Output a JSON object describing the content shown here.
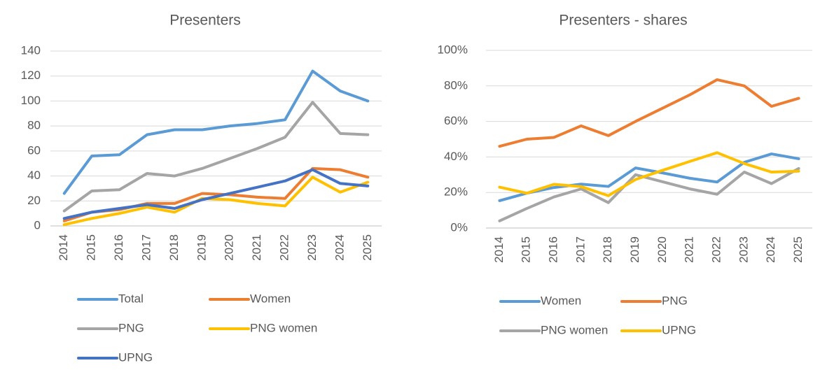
{
  "chart_data": [
    {
      "type": "line",
      "title": "Presenters",
      "categories": [
        "2014",
        "2015",
        "2016",
        "2017",
        "2018",
        "2019",
        "2020",
        "2021",
        "2022",
        "2023",
        "2024",
        "2025"
      ],
      "series": [
        {
          "name": "Total",
          "color": "#5b9bd5",
          "values": [
            26,
            56,
            57,
            73,
            77,
            77,
            80,
            82,
            85,
            124,
            108,
            100
          ]
        },
        {
          "name": "Women",
          "color": "#ed7d31",
          "values": [
            4,
            11,
            13,
            18,
            18,
            26,
            25,
            23,
            22,
            46,
            45,
            39
          ]
        },
        {
          "name": "PNG",
          "color": "#a5a5a5",
          "values": [
            12,
            28,
            29,
            42,
            40,
            46,
            54,
            62,
            71,
            99,
            74,
            73
          ]
        },
        {
          "name": "PNG women",
          "color": "#ffc000",
          "values": [
            1,
            6,
            10,
            15,
            11,
            22,
            21,
            18,
            16,
            39,
            27,
            35
          ]
        },
        {
          "name": "UPNG",
          "color": "#4472c4",
          "values": [
            6,
            11,
            14,
            17,
            14,
            21,
            26,
            31,
            36,
            45,
            34,
            32
          ]
        }
      ],
      "ylim": [
        0,
        140
      ],
      "yticks": [
        0,
        20,
        40,
        60,
        80,
        100,
        120,
        140
      ],
      "grid": true
    },
    {
      "type": "line",
      "title": "Presenters - shares",
      "categories": [
        "2014",
        "2015",
        "2016",
        "2017",
        "2018",
        "2019",
        "2020",
        "2021",
        "2022",
        "2023",
        "2024",
        "2025"
      ],
      "series": [
        {
          "name": "Women",
          "color": "#5b9bd5",
          "values": [
            15.4,
            19.6,
            22.8,
            24.7,
            23.4,
            33.8,
            31,
            28,
            25.9,
            37,
            41.7,
            39
          ]
        },
        {
          "name": "PNG",
          "color": "#ed7d31",
          "values": [
            46,
            50,
            51,
            57.5,
            52,
            60,
            67.5,
            75,
            83.5,
            80,
            68.5,
            73
          ]
        },
        {
          "name": "PNG women",
          "color": "#a5a5a5",
          "values": [
            4,
            11,
            17.5,
            22,
            14.3,
            30,
            26,
            22,
            19,
            31.5,
            25,
            33.5
          ]
        },
        {
          "name": "UPNG",
          "color": "#ffc000",
          "values": [
            23,
            19.6,
            24.6,
            23.3,
            18.2,
            27.3,
            32.5,
            37.5,
            42.4,
            36.3,
            31.5,
            32
          ]
        }
      ],
      "ylim": [
        0,
        100
      ],
      "yticks": [
        {
          "value": 0,
          "label": "0%"
        },
        {
          "value": 20,
          "label": "20%"
        },
        {
          "value": 40,
          "label": "40%"
        },
        {
          "value": 60,
          "label": "60%"
        },
        {
          "value": 80,
          "label": "80%"
        },
        {
          "value": 100,
          "label": "100%"
        }
      ],
      "grid": true
    }
  ]
}
